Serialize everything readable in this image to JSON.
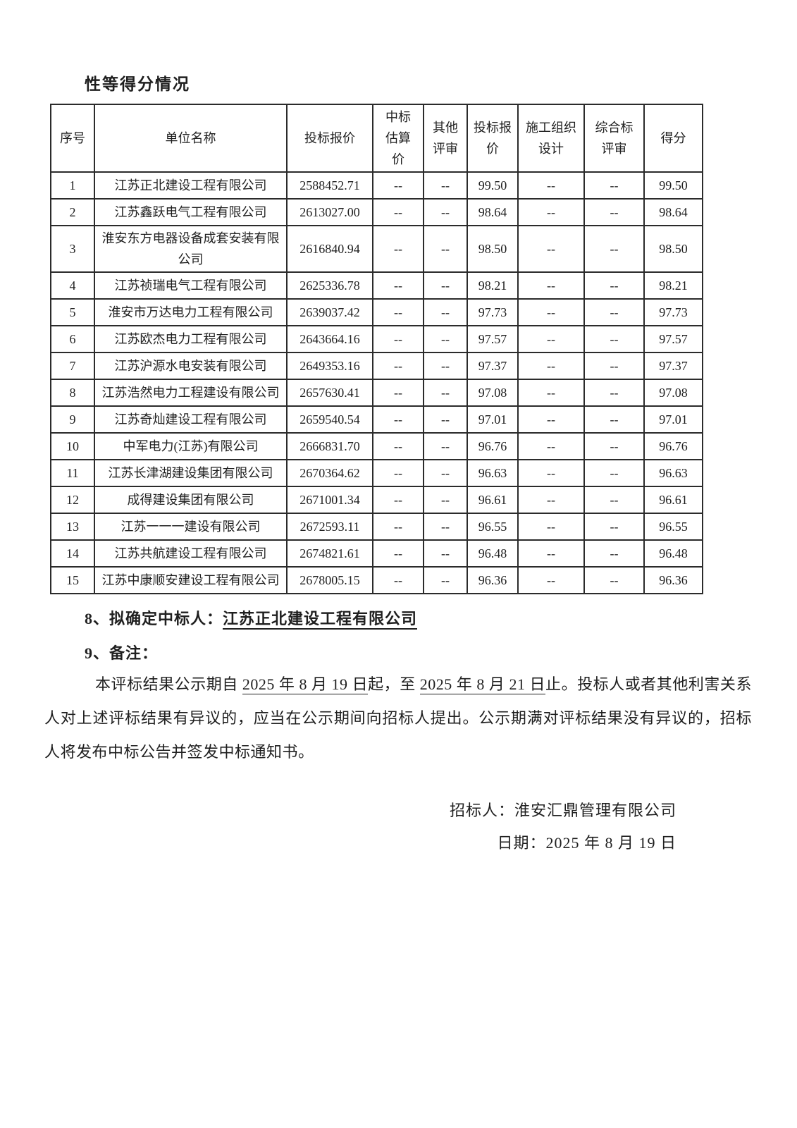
{
  "heading": "性等得分情况",
  "table": {
    "headers": [
      "序号",
      "单位名称",
      "投标报价",
      "中标\n估算\n价",
      "其他\n评审",
      "投标报\n价",
      "施工组织\n设计",
      "综合标\n评审",
      "得分"
    ],
    "rows": [
      [
        "1",
        "江苏正北建设工程有限公司",
        "2588452.71",
        "--",
        "--",
        "99.50",
        "--",
        "--",
        "99.50"
      ],
      [
        "2",
        "江苏鑫跃电气工程有限公司",
        "2613027.00",
        "--",
        "--",
        "98.64",
        "--",
        "--",
        "98.64"
      ],
      [
        "3",
        "淮安东方电器设备成套安装有限公司",
        "2616840.94",
        "--",
        "--",
        "98.50",
        "--",
        "--",
        "98.50"
      ],
      [
        "4",
        "江苏祯瑞电气工程有限公司",
        "2625336.78",
        "--",
        "--",
        "98.21",
        "--",
        "--",
        "98.21"
      ],
      [
        "5",
        "淮安市万达电力工程有限公司",
        "2639037.42",
        "--",
        "--",
        "97.73",
        "--",
        "--",
        "97.73"
      ],
      [
        "6",
        "江苏欧杰电力工程有限公司",
        "2643664.16",
        "--",
        "--",
        "97.57",
        "--",
        "--",
        "97.57"
      ],
      [
        "7",
        "江苏沪源水电安装有限公司",
        "2649353.16",
        "--",
        "--",
        "97.37",
        "--",
        "--",
        "97.37"
      ],
      [
        "8",
        "江苏浩然电力工程建设有限公司",
        "2657630.41",
        "--",
        "--",
        "97.08",
        "--",
        "--",
        "97.08"
      ],
      [
        "9",
        "江苏奇灿建设工程有限公司",
        "2659540.54",
        "--",
        "--",
        "97.01",
        "--",
        "--",
        "97.01"
      ],
      [
        "10",
        "中军电力(江苏)有限公司",
        "2666831.70",
        "--",
        "--",
        "96.76",
        "--",
        "--",
        "96.76"
      ],
      [
        "11",
        "江苏长津湖建设集团有限公司",
        "2670364.62",
        "--",
        "--",
        "96.63",
        "--",
        "--",
        "96.63"
      ],
      [
        "12",
        "成得建设集团有限公司",
        "2671001.34",
        "--",
        "--",
        "96.61",
        "--",
        "--",
        "96.61"
      ],
      [
        "13",
        "江苏一一一建设有限公司",
        "2672593.11",
        "--",
        "--",
        "96.55",
        "--",
        "--",
        "96.55"
      ],
      [
        "14",
        "江苏共航建设工程有限公司",
        "2674821.61",
        "--",
        "--",
        "96.48",
        "--",
        "--",
        "96.48"
      ],
      [
        "15",
        "江苏中康顺安建设工程有限公司",
        "2678005.15",
        "--",
        "--",
        "96.36",
        "--",
        "--",
        "96.36"
      ]
    ]
  },
  "winner": {
    "label": "8、拟确定中标人：",
    "name": "江苏正北建设工程有限公司"
  },
  "remark": {
    "label": "9、备注：",
    "p1": "本评标结果公示期自 ",
    "date_start": "2025 年 8 月 19 日",
    "p2": "起，至 ",
    "date_end": "2025 年 8 月 21 日",
    "p3": "止。投标人或者其他利害关系人对上述评标结果有异议的，应当在公示期间向招标人提出。公示期满对评标结果没有异议的，招标人将发布中标公告并签发中标通知书。"
  },
  "signature": {
    "bidder": "招标人：淮安汇鼎管理有限公司",
    "date": "日期：2025 年 8 月 19 日"
  }
}
